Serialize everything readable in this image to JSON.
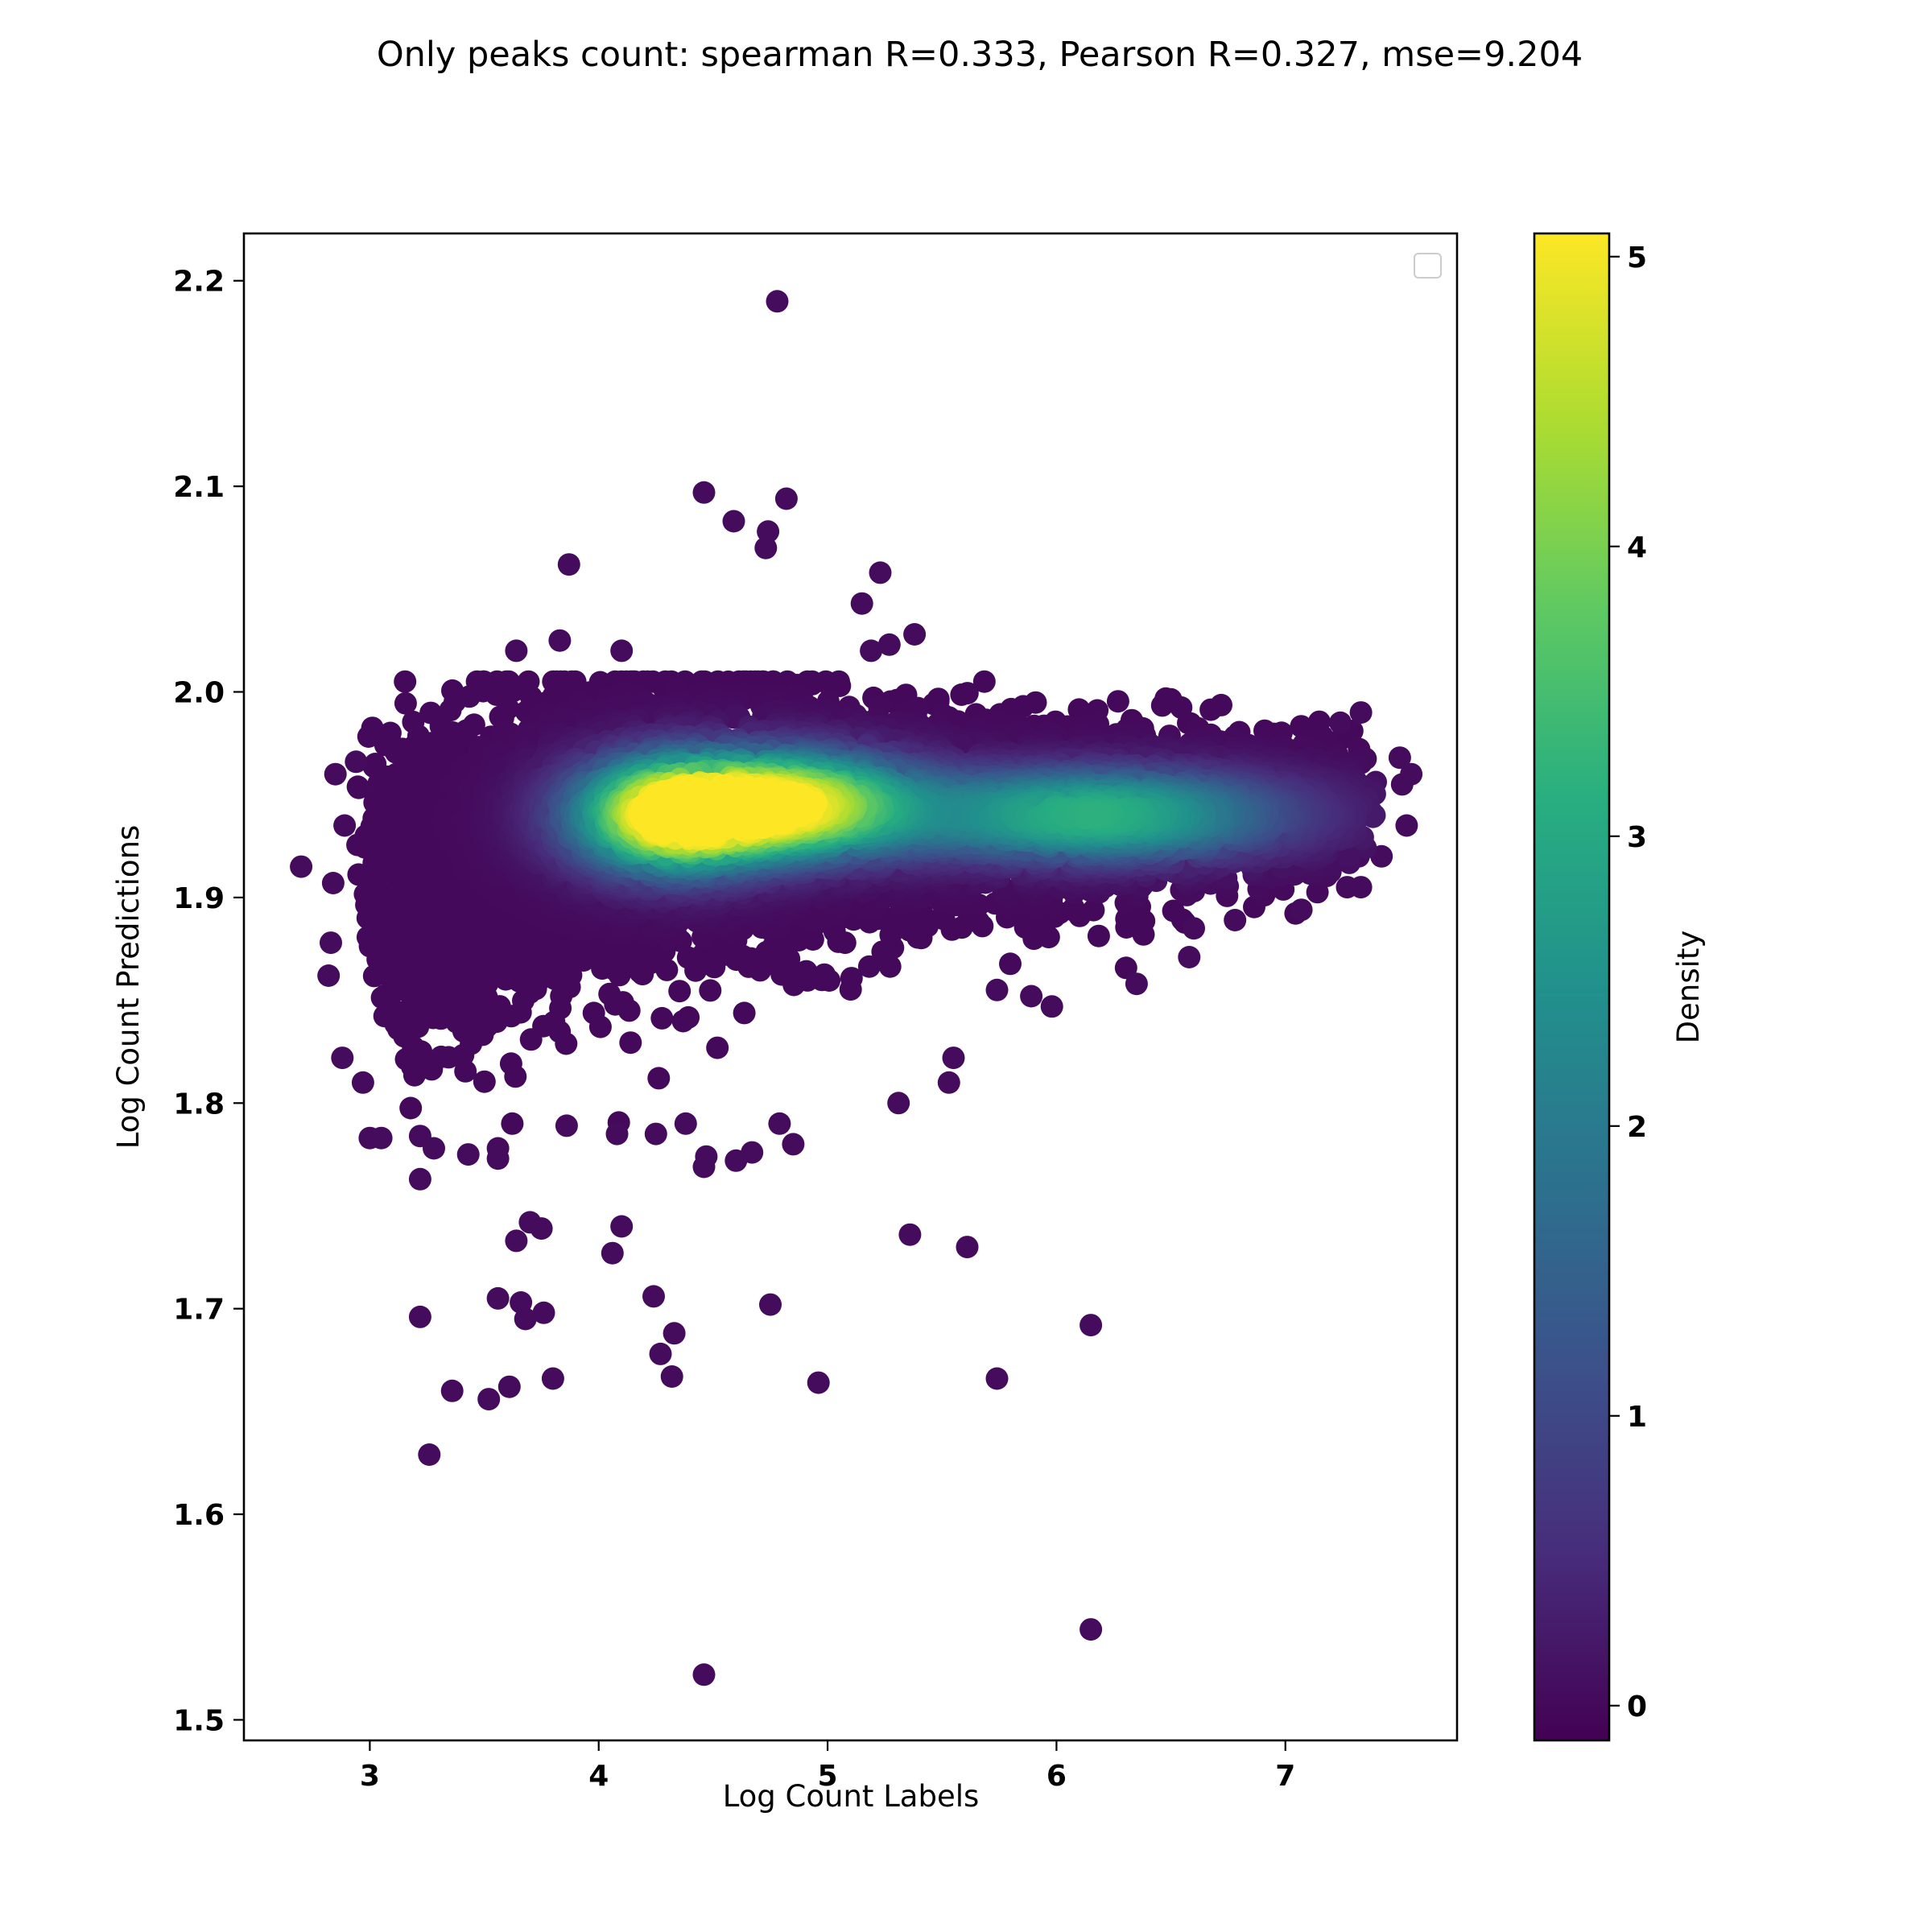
{
  "chart_data": {
    "type": "scatter",
    "title": "Only peaks count: spearman R=0.333, Pearson R=0.327, mse=9.204",
    "xlabel": "Log Count Labels",
    "ylabel": "Log Count Predictions",
    "xlim": [
      2.45,
      7.75
    ],
    "ylim": [
      1.49,
      2.223
    ],
    "xticks": [
      3,
      4,
      5,
      6,
      7
    ],
    "yticks": [
      1.5,
      1.6,
      1.7,
      1.8,
      1.9,
      2.0,
      2.1,
      2.2
    ],
    "grid": false,
    "legend": "upper-right (empty)",
    "colormap": "viridis",
    "colorbar": {
      "label": "Density",
      "range": [
        -0.12,
        5.08
      ],
      "ticks": [
        0,
        1,
        2,
        3,
        4,
        5
      ]
    },
    "density_peaks": [
      {
        "x": 4.32,
        "y": 1.94,
        "density": 5.0
      },
      {
        "x": 4.85,
        "y": 1.945,
        "density": 4.6
      },
      {
        "x": 6.15,
        "y": 1.94,
        "density": 3.2
      }
    ],
    "outliers": [
      {
        "x": 4.78,
        "y": 2.19
      },
      {
        "x": 4.46,
        "y": 2.097
      },
      {
        "x": 4.59,
        "y": 2.083
      },
      {
        "x": 4.82,
        "y": 2.094
      },
      {
        "x": 4.74,
        "y": 2.078
      },
      {
        "x": 4.73,
        "y": 2.07
      },
      {
        "x": 3.87,
        "y": 2.062
      },
      {
        "x": 5.23,
        "y": 2.058
      },
      {
        "x": 5.15,
        "y": 2.043
      },
      {
        "x": 5.38,
        "y": 2.028
      },
      {
        "x": 5.27,
        "y": 2.023
      },
      {
        "x": 5.19,
        "y": 2.02
      },
      {
        "x": 4.1,
        "y": 2.02
      },
      {
        "x": 3.64,
        "y": 2.02
      },
      {
        "x": 3.83,
        "y": 2.025
      },
      {
        "x": 2.85,
        "y": 1.96
      },
      {
        "x": 2.94,
        "y": 1.966
      },
      {
        "x": 2.7,
        "y": 1.915
      },
      {
        "x": 2.84,
        "y": 1.907
      },
      {
        "x": 2.89,
        "y": 1.935
      },
      {
        "x": 2.83,
        "y": 1.878
      },
      {
        "x": 2.82,
        "y": 1.862
      },
      {
        "x": 2.88,
        "y": 1.822
      },
      {
        "x": 2.97,
        "y": 1.81
      },
      {
        "x": 3.0,
        "y": 1.783
      },
      {
        "x": 3.05,
        "y": 1.783
      },
      {
        "x": 3.22,
        "y": 1.763
      },
      {
        "x": 3.22,
        "y": 1.784
      },
      {
        "x": 3.28,
        "y": 1.778
      },
      {
        "x": 3.43,
        "y": 1.775
      },
      {
        "x": 3.56,
        "y": 1.773
      },
      {
        "x": 3.56,
        "y": 1.778
      },
      {
        "x": 3.86,
        "y": 1.789
      },
      {
        "x": 4.08,
        "y": 1.785
      },
      {
        "x": 4.25,
        "y": 1.785
      },
      {
        "x": 4.38,
        "y": 1.79
      },
      {
        "x": 4.46,
        "y": 1.769
      },
      {
        "x": 4.47,
        "y": 1.774
      },
      {
        "x": 4.6,
        "y": 1.772
      },
      {
        "x": 4.67,
        "y": 1.776
      },
      {
        "x": 4.79,
        "y": 1.79
      },
      {
        "x": 4.85,
        "y": 1.78
      },
      {
        "x": 5.31,
        "y": 1.8
      },
      {
        "x": 5.53,
        "y": 1.81
      },
      {
        "x": 5.55,
        "y": 1.822
      },
      {
        "x": 5.74,
        "y": 1.855
      },
      {
        "x": 5.89,
        "y": 1.852
      },
      {
        "x": 5.98,
        "y": 1.847
      },
      {
        "x": 6.35,
        "y": 1.858
      },
      {
        "x": 6.58,
        "y": 1.871
      },
      {
        "x": 6.6,
        "y": 1.885
      },
      {
        "x": 6.78,
        "y": 1.889
      },
      {
        "x": 7.07,
        "y": 1.894
      },
      {
        "x": 7.27,
        "y": 1.905
      },
      {
        "x": 7.33,
        "y": 1.905
      },
      {
        "x": 7.32,
        "y": 1.92
      },
      {
        "x": 7.42,
        "y": 1.92
      },
      {
        "x": 7.53,
        "y": 1.935
      },
      {
        "x": 7.51,
        "y": 1.955
      },
      {
        "x": 7.55,
        "y": 1.96
      },
      {
        "x": 7.5,
        "y": 1.968
      },
      {
        "x": 7.33,
        "y": 1.99
      },
      {
        "x": 7.24,
        "y": 1.985
      },
      {
        "x": 3.7,
        "y": 1.742
      },
      {
        "x": 3.75,
        "y": 1.739
      },
      {
        "x": 3.64,
        "y": 1.733
      },
      {
        "x": 4.1,
        "y": 1.74
      },
      {
        "x": 4.06,
        "y": 1.727
      },
      {
        "x": 5.36,
        "y": 1.736
      },
      {
        "x": 5.61,
        "y": 1.73
      },
      {
        "x": 3.22,
        "y": 1.696
      },
      {
        "x": 3.56,
        "y": 1.705
      },
      {
        "x": 3.66,
        "y": 1.703
      },
      {
        "x": 3.68,
        "y": 1.695
      },
      {
        "x": 3.76,
        "y": 1.698
      },
      {
        "x": 4.24,
        "y": 1.706
      },
      {
        "x": 4.33,
        "y": 1.688
      },
      {
        "x": 4.75,
        "y": 1.702
      },
      {
        "x": 4.27,
        "y": 1.678
      },
      {
        "x": 4.32,
        "y": 1.667
      },
      {
        "x": 3.36,
        "y": 1.66
      },
      {
        "x": 3.52,
        "y": 1.656
      },
      {
        "x": 3.61,
        "y": 1.662
      },
      {
        "x": 3.8,
        "y": 1.666
      },
      {
        "x": 4.96,
        "y": 1.664
      },
      {
        "x": 5.74,
        "y": 1.666
      },
      {
        "x": 6.15,
        "y": 1.692
      },
      {
        "x": 3.26,
        "y": 1.629
      },
      {
        "x": 6.15,
        "y": 1.544
      },
      {
        "x": 4.46,
        "y": 1.522
      }
    ]
  }
}
